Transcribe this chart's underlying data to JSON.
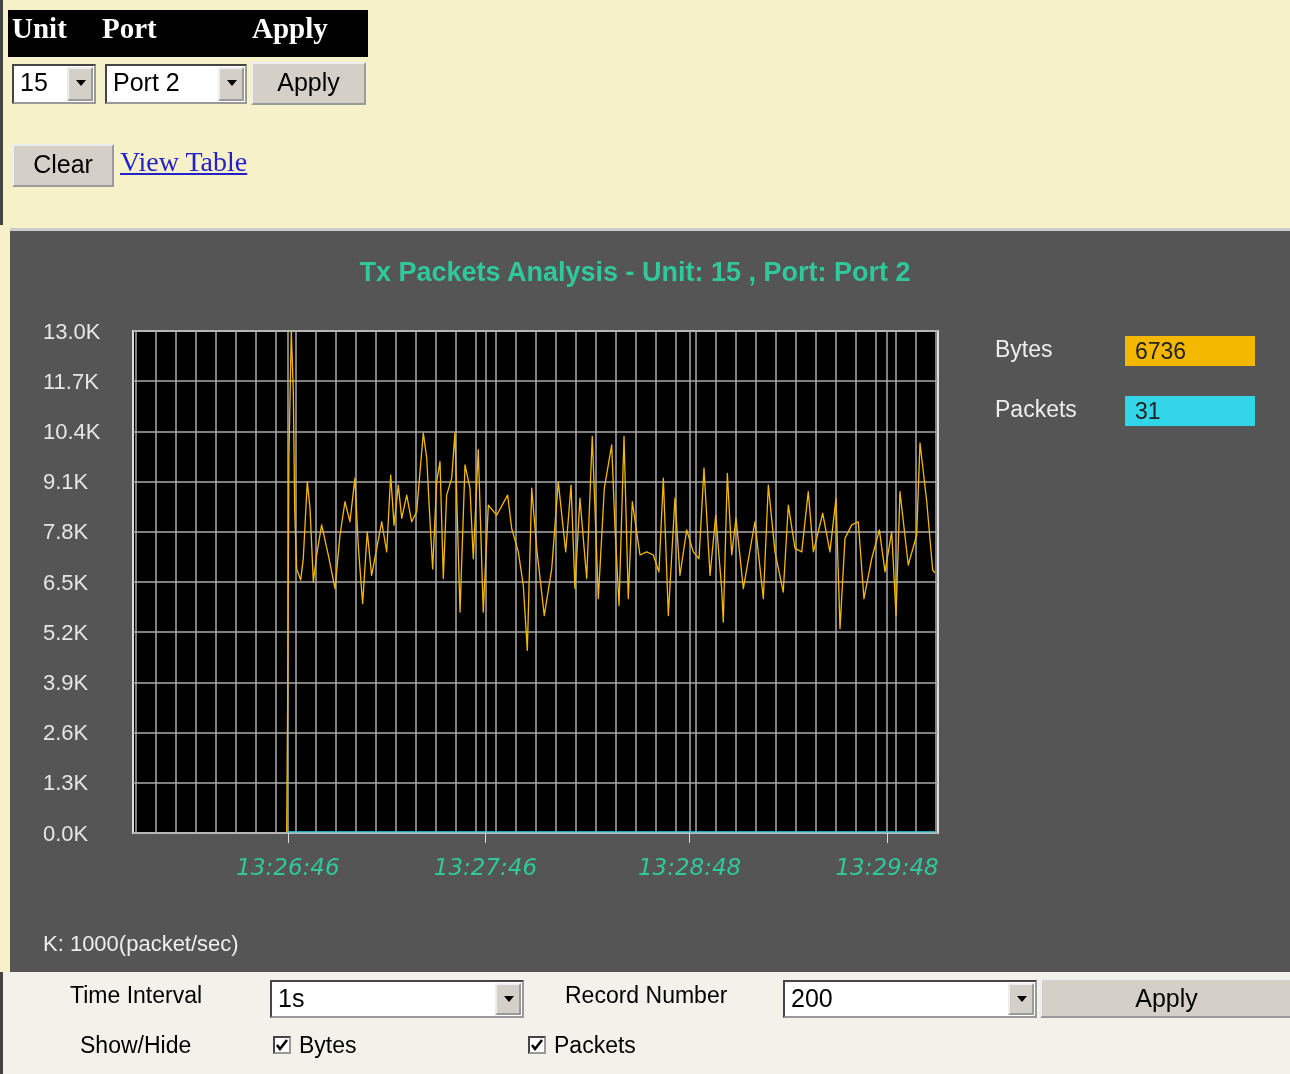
{
  "chart_data": {
    "type": "line",
    "title": "Tx Packets Analysis - Unit: 15 , Port: Port 2",
    "xlim": [
      13.43303,
      13.50097
    ],
    "xticks": [
      {
        "value": 13.43328,
        "label": null
      },
      {
        "value": 13.43497,
        "label": null
      },
      {
        "value": 13.43666,
        "label": null
      },
      {
        "value": 13.43834,
        "label": null
      },
      {
        "value": 13.44003,
        "label": null
      },
      {
        "value": 13.44172,
        "label": null
      },
      {
        "value": 13.44341,
        "label": null
      },
      {
        "value": 13.4451,
        "label": null
      },
      {
        "value": 13.44611,
        "label": "13:26:46"
      },
      {
        "value": 13.44678,
        "label": null
      },
      {
        "value": 13.44847,
        "label": null
      },
      {
        "value": 13.45016,
        "label": null
      },
      {
        "value": 13.45185,
        "label": null
      },
      {
        "value": 13.45354,
        "label": null
      },
      {
        "value": 13.45522,
        "label": null
      },
      {
        "value": 13.45691,
        "label": null
      },
      {
        "value": 13.4586,
        "label": null
      },
      {
        "value": 13.46029,
        "label": null
      },
      {
        "value": 13.46198,
        "label": null
      },
      {
        "value": 13.46278,
        "label": "13:27:46"
      },
      {
        "value": 13.46366,
        "label": null
      },
      {
        "value": 13.46535,
        "label": null
      },
      {
        "value": 13.46704,
        "label": null
      },
      {
        "value": 13.46873,
        "label": null
      },
      {
        "value": 13.47042,
        "label": null
      },
      {
        "value": 13.4721,
        "label": null
      },
      {
        "value": 13.47379,
        "label": null
      },
      {
        "value": 13.47548,
        "label": null
      },
      {
        "value": 13.47717,
        "label": null
      },
      {
        "value": 13.47886,
        "label": null
      },
      {
        "value": 13.48,
        "label": "13:28:48"
      },
      {
        "value": 13.48054,
        "label": null
      },
      {
        "value": 13.48223,
        "label": null
      },
      {
        "value": 13.48392,
        "label": null
      },
      {
        "value": 13.48561,
        "label": null
      },
      {
        "value": 13.4873,
        "label": null
      },
      {
        "value": 13.48898,
        "label": null
      },
      {
        "value": 13.49067,
        "label": null
      },
      {
        "value": 13.49236,
        "label": null
      },
      {
        "value": 13.49405,
        "label": null
      },
      {
        "value": 13.49574,
        "label": null
      },
      {
        "value": 13.49667,
        "label": "13:29:48"
      },
      {
        "value": 13.49742,
        "label": null
      },
      {
        "value": 13.49911,
        "label": null
      },
      {
        "value": 13.5008,
        "label": null
      }
    ],
    "ylim": [
      0,
      13000
    ],
    "yticks": [
      {
        "value": 0,
        "label": "0.0K"
      },
      {
        "value": 1300,
        "label": "1.3K"
      },
      {
        "value": 2600,
        "label": "2.6K"
      },
      {
        "value": 3900,
        "label": "3.9K"
      },
      {
        "value": 5200,
        "label": "5.2K"
      },
      {
        "value": 6500,
        "label": "6.5K"
      },
      {
        "value": 7800,
        "label": "7.8K"
      },
      {
        "value": 9100,
        "label": "9.1K"
      },
      {
        "value": 10400,
        "label": "10.4K"
      },
      {
        "value": 11700,
        "label": "11.7K"
      },
      {
        "value": 13000,
        "label": "13.0K"
      }
    ],
    "grid": true,
    "legend": "right",
    "marker": "none",
    "series": [
      {
        "name": "Bytes",
        "color": "#f5b800",
        "x": [
          13.446,
          13.44608,
          13.44619,
          13.44639,
          13.44656,
          13.44668,
          13.44684,
          13.44718,
          13.4474,
          13.44774,
          13.44797,
          13.44825,
          13.44853,
          13.44895,
          13.44951,
          13.45008,
          13.4505,
          13.45092,
          13.45134,
          13.45176,
          13.45204,
          13.45241,
          13.4528,
          13.45317,
          13.45402,
          13.45444,
          13.45478,
          13.45506,
          13.45542,
          13.45571,
          13.45613,
          13.45655,
          13.45697,
          13.45753,
          13.45782,
          13.45804,
          13.45832,
          13.45866,
          13.45894,
          13.45922,
          13.4595,
          13.45993,
          13.4602,
          13.46063,
          13.46105,
          13.46147,
          13.46175,
          13.46217,
          13.46259,
          13.46302,
          13.46372,
          13.46465,
          13.46499,
          13.46555,
          13.46597,
          13.46631,
          13.46668,
          13.4671,
          13.46774,
          13.46837,
          13.46892,
          13.46955,
          13.47,
          13.47033,
          13.47075,
          13.47132,
          13.47179,
          13.4723,
          13.47281,
          13.47343,
          13.47371,
          13.47405,
          13.47447,
          13.47483,
          13.47517,
          13.47582,
          13.47638,
          13.47694,
          13.47742,
          13.47779,
          13.47821,
          13.47877,
          13.47919,
          13.47976,
          13.48032,
          13.4808,
          13.48122,
          13.48173,
          13.48221,
          13.48271,
          13.48285,
          13.48319,
          13.48356,
          13.48392,
          13.48454,
          13.48552,
          13.48623,
          13.48665,
          13.48721,
          13.48791,
          13.48834,
          13.4889,
          13.48947,
          13.49002,
          13.49045,
          13.49124,
          13.49185,
          13.49236,
          13.4927,
          13.49312,
          13.49369,
          13.49424,
          13.49472,
          13.49537,
          13.49602,
          13.4965,
          13.49706,
          13.49743,
          13.49776,
          13.49846,
          13.49917,
          13.49945,
          13.50002,
          13.50052,
          13.50072
        ],
        "values": [
          0,
          3250,
          9750,
          13000,
          11440,
          8320,
          6840,
          6550,
          7100,
          9100,
          8400,
          6500,
          7200,
          7980,
          7200,
          6330,
          7710,
          8580,
          8060,
          9190,
          7450,
          5940,
          7800,
          6670,
          8060,
          7280,
          9270,
          7970,
          9010,
          8150,
          8750,
          8060,
          8320,
          10360,
          9710,
          8400,
          6840,
          9100,
          9620,
          6590,
          8750,
          9190,
          10360,
          5720,
          9530,
          8930,
          7100,
          9930,
          5720,
          8490,
          8230,
          8750,
          7890,
          7280,
          6410,
          4730,
          8930,
          7370,
          5630,
          6840,
          9100,
          7280,
          9010,
          6330,
          8670,
          6590,
          10270,
          6070,
          8930,
          10050,
          7890,
          5890,
          10270,
          6070,
          8580,
          7200,
          7280,
          7200,
          6760,
          9190,
          5630,
          8670,
          6670,
          7850,
          7280,
          7100,
          9450,
          6670,
          8230,
          6330,
          5460,
          9310,
          7200,
          8150,
          6330,
          8060,
          6070,
          9010,
          7280,
          6240,
          8490,
          7370,
          7280,
          8840,
          7280,
          8280,
          7280,
          8670,
          5290,
          7630,
          7980,
          8060,
          6070,
          7100,
          7850,
          6760,
          7800,
          5630,
          8840,
          6940,
          7710,
          10100,
          8580,
          6810,
          6736
        ]
      },
      {
        "name": "Packets",
        "color": "#33d6e8",
        "x": [
          13.446,
          13.44608,
          13.50072
        ],
        "values": [
          0,
          31,
          31
        ]
      }
    ],
    "annotations": [
      "K: 1000(packet/sec)",
      "6736",
      "31",
      "Unit",
      "Port",
      "Apply",
      "15",
      "Port 2",
      "Apply",
      "Clear",
      "View Table",
      "Time Interval",
      "1s",
      "Record Number",
      "200",
      "Apply",
      "Show/Hide",
      "Bytes",
      "Packets"
    ]
  }
}
